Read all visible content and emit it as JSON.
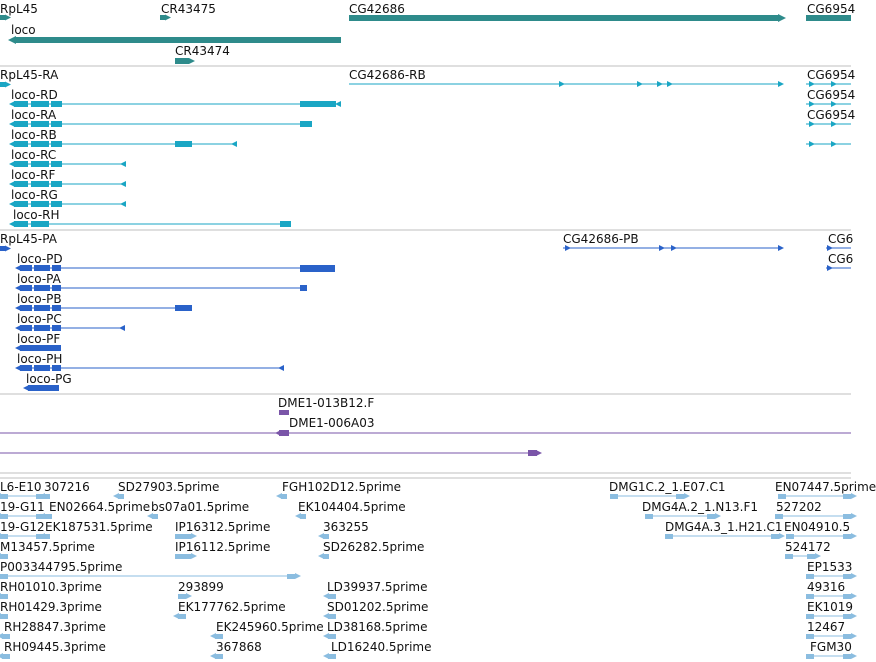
{
  "colors": {
    "gene": "#2e8b8b",
    "transcript_ra": "#1aa6c4",
    "protein": "#2a62c9",
    "clone": "#7a55a8",
    "est": "#8bbde0",
    "divider": "#bfbfbf",
    "text": "#111111"
  },
  "tracks": {
    "genes": {
      "labels": [
        {
          "id": "g-rpl45",
          "text": "RpL45"
        },
        {
          "id": "g-cr43475",
          "text": "CR43475"
        },
        {
          "id": "g-cg42686",
          "text": "CG42686"
        },
        {
          "id": "g-cg6954",
          "text": "CG6954"
        },
        {
          "id": "g-loco",
          "text": "loco"
        },
        {
          "id": "g-cr43474",
          "text": "CR43474"
        }
      ]
    },
    "transcripts": {
      "labels": [
        {
          "id": "t-rpl45-ra",
          "text": "RpL45-RA"
        },
        {
          "id": "t-cg42686-rb",
          "text": "CG42686-RB"
        },
        {
          "id": "t-cg6954-1",
          "text": "CG6954"
        },
        {
          "id": "t-loco-rd",
          "text": "loco-RD"
        },
        {
          "id": "t-cg6954-2",
          "text": "CG6954"
        },
        {
          "id": "t-loco-ra",
          "text": "loco-RA"
        },
        {
          "id": "t-cg6954-3",
          "text": "CG6954"
        },
        {
          "id": "t-loco-rb",
          "text": "loco-RB"
        },
        {
          "id": "t-loco-rc",
          "text": "loco-RC"
        },
        {
          "id": "t-loco-rf",
          "text": "loco-RF"
        },
        {
          "id": "t-loco-rg",
          "text": "loco-RG"
        },
        {
          "id": "t-loco-rh",
          "text": "loco-RH"
        }
      ]
    },
    "proteins": {
      "labels": [
        {
          "id": "p-rpl45-pa",
          "text": "RpL45-PA"
        },
        {
          "id": "p-cg42686-pb",
          "text": "CG42686-PB"
        },
        {
          "id": "p-cg6-1",
          "text": "CG6"
        },
        {
          "id": "p-loco-pd",
          "text": "loco-PD"
        },
        {
          "id": "p-cg6-2",
          "text": "CG6"
        },
        {
          "id": "p-loco-pa",
          "text": "loco-PA"
        },
        {
          "id": "p-loco-pb",
          "text": "loco-PB"
        },
        {
          "id": "p-loco-pc",
          "text": "loco-PC"
        },
        {
          "id": "p-loco-pf",
          "text": "loco-PF"
        },
        {
          "id": "p-loco-ph",
          "text": "loco-PH"
        },
        {
          "id": "p-loco-pg",
          "text": "loco-PG"
        }
      ]
    },
    "clones": {
      "labels": [
        {
          "id": "c-013b12",
          "text": "DME1-013B12.F"
        },
        {
          "id": "c-006a03",
          "text": "DME1-006A03"
        }
      ]
    },
    "ests": {
      "labels": [
        {
          "id": "e1",
          "text": "L6-E10"
        },
        {
          "id": "e2",
          "text": "307216"
        },
        {
          "id": "e3",
          "text": "SD27903.5prime"
        },
        {
          "id": "e4",
          "text": "FGH102D12.5prime"
        },
        {
          "id": "e5",
          "text": "DMG1C.2_1.E07.C1"
        },
        {
          "id": "e6",
          "text": "EN07447.5prime"
        },
        {
          "id": "e7",
          "text": "19-G11"
        },
        {
          "id": "e8",
          "text": "EN02664.5prime"
        },
        {
          "id": "e9",
          "text": "bs07a01.5prime"
        },
        {
          "id": "e10",
          "text": "EK104404.5prime"
        },
        {
          "id": "e11",
          "text": "DMG4A.2_1.N13.F1"
        },
        {
          "id": "e12",
          "text": "527202"
        },
        {
          "id": "e13",
          "text": "19-G12"
        },
        {
          "id": "e14",
          "text": "EK187531.5prime"
        },
        {
          "id": "e15",
          "text": "IP16312.5prime"
        },
        {
          "id": "e16",
          "text": "363255"
        },
        {
          "id": "e17",
          "text": "DMG4A.3_1.H21.C1"
        },
        {
          "id": "e18",
          "text": "EN04910.5"
        },
        {
          "id": "e19",
          "text": "M13457.5prime"
        },
        {
          "id": "e20",
          "text": "IP16112.5prime"
        },
        {
          "id": "e21",
          "text": "SD26282.5prime"
        },
        {
          "id": "e22",
          "text": "524172"
        },
        {
          "id": "e23",
          "text": "P003344795.5prime"
        },
        {
          "id": "e24",
          "text": "EP1533"
        },
        {
          "id": "e25",
          "text": "RH01010.3prime"
        },
        {
          "id": "e26",
          "text": "293899"
        },
        {
          "id": "e27",
          "text": "LD39937.5prime"
        },
        {
          "id": "e28",
          "text": "49316"
        },
        {
          "id": "e29",
          "text": "RH01429.3prime"
        },
        {
          "id": "e30",
          "text": "EK177762.5prime"
        },
        {
          "id": "e31",
          "text": "SD01202.5prime"
        },
        {
          "id": "e32",
          "text": "EK1019"
        },
        {
          "id": "e33",
          "text": "RH28847.3prime"
        },
        {
          "id": "e34",
          "text": "EK245960.5prime"
        },
        {
          "id": "e35",
          "text": "LD38168.5prime"
        },
        {
          "id": "e36",
          "text": "12467"
        },
        {
          "id": "e37",
          "text": "RH09445.3prime"
        },
        {
          "id": "e38",
          "text": "367868"
        },
        {
          "id": "e39",
          "text": "LD16240.5prime"
        },
        {
          "id": "e40",
          "text": "FGM30"
        }
      ]
    }
  }
}
